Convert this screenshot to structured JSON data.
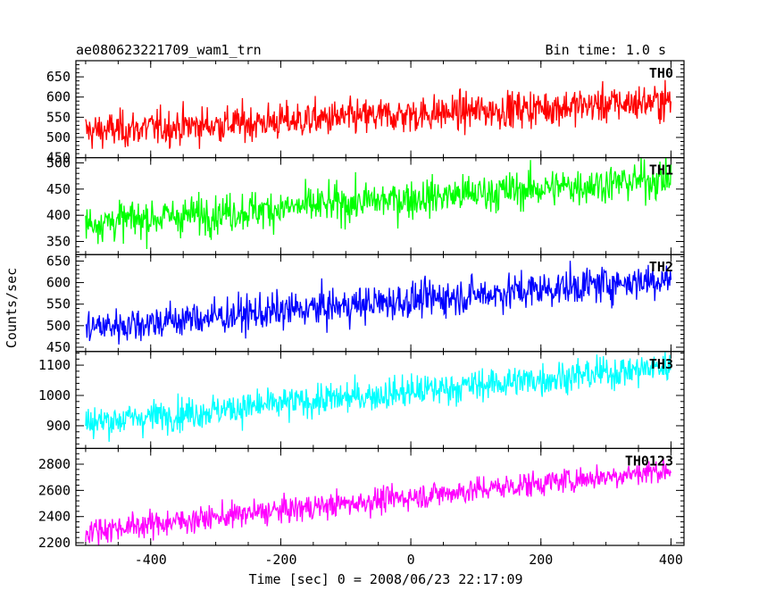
{
  "chart_data": {
    "type": "line",
    "title": "ae080623221709_wam1_trn",
    "subtitle": "Bin time: 1.0 s",
    "xlabel": "Time [sec] 0 = 2008/06/23 22:17:09",
    "ylabel": "Counts/sec",
    "xlim": [
      -515,
      420
    ],
    "x_ticks": [
      -400,
      -200,
      0,
      200,
      400
    ],
    "x_range": [
      -500,
      400
    ],
    "grid": false,
    "panels": [
      {
        "name": "TH0",
        "color": "#ff0000",
        "ylim": [
          450,
          690
        ],
        "y_ticks": [
          450,
          500,
          550,
          600,
          650
        ],
        "trend_start": 515,
        "trend_end": 590,
        "noise": 32
      },
      {
        "name": "TH1",
        "color": "#00ff00",
        "ylim": [
          325,
          510
        ],
        "y_ticks": [
          350,
          400,
          450,
          500
        ],
        "trend_start": 385,
        "trend_end": 470,
        "noise": 26
      },
      {
        "name": "TH2",
        "color": "#0000ff",
        "ylim": [
          440,
          665
        ],
        "y_ticks": [
          450,
          500,
          550,
          600,
          650
        ],
        "trend_start": 495,
        "trend_end": 610,
        "noise": 30
      },
      {
        "name": "TH3",
        "color": "#00ffff",
        "ylim": [
          825,
          1145
        ],
        "y_ticks": [
          900,
          1000,
          1100
        ],
        "trend_start": 910,
        "trend_end": 1095,
        "noise": 38
      },
      {
        "name": "TH0123",
        "color": "#ff00ff",
        "ylim": [
          2180,
          2920
        ],
        "y_ticks": [
          2200,
          2400,
          2600,
          2800
        ],
        "trend_start": 2290,
        "trend_end": 2760,
        "noise": 70
      }
    ]
  }
}
